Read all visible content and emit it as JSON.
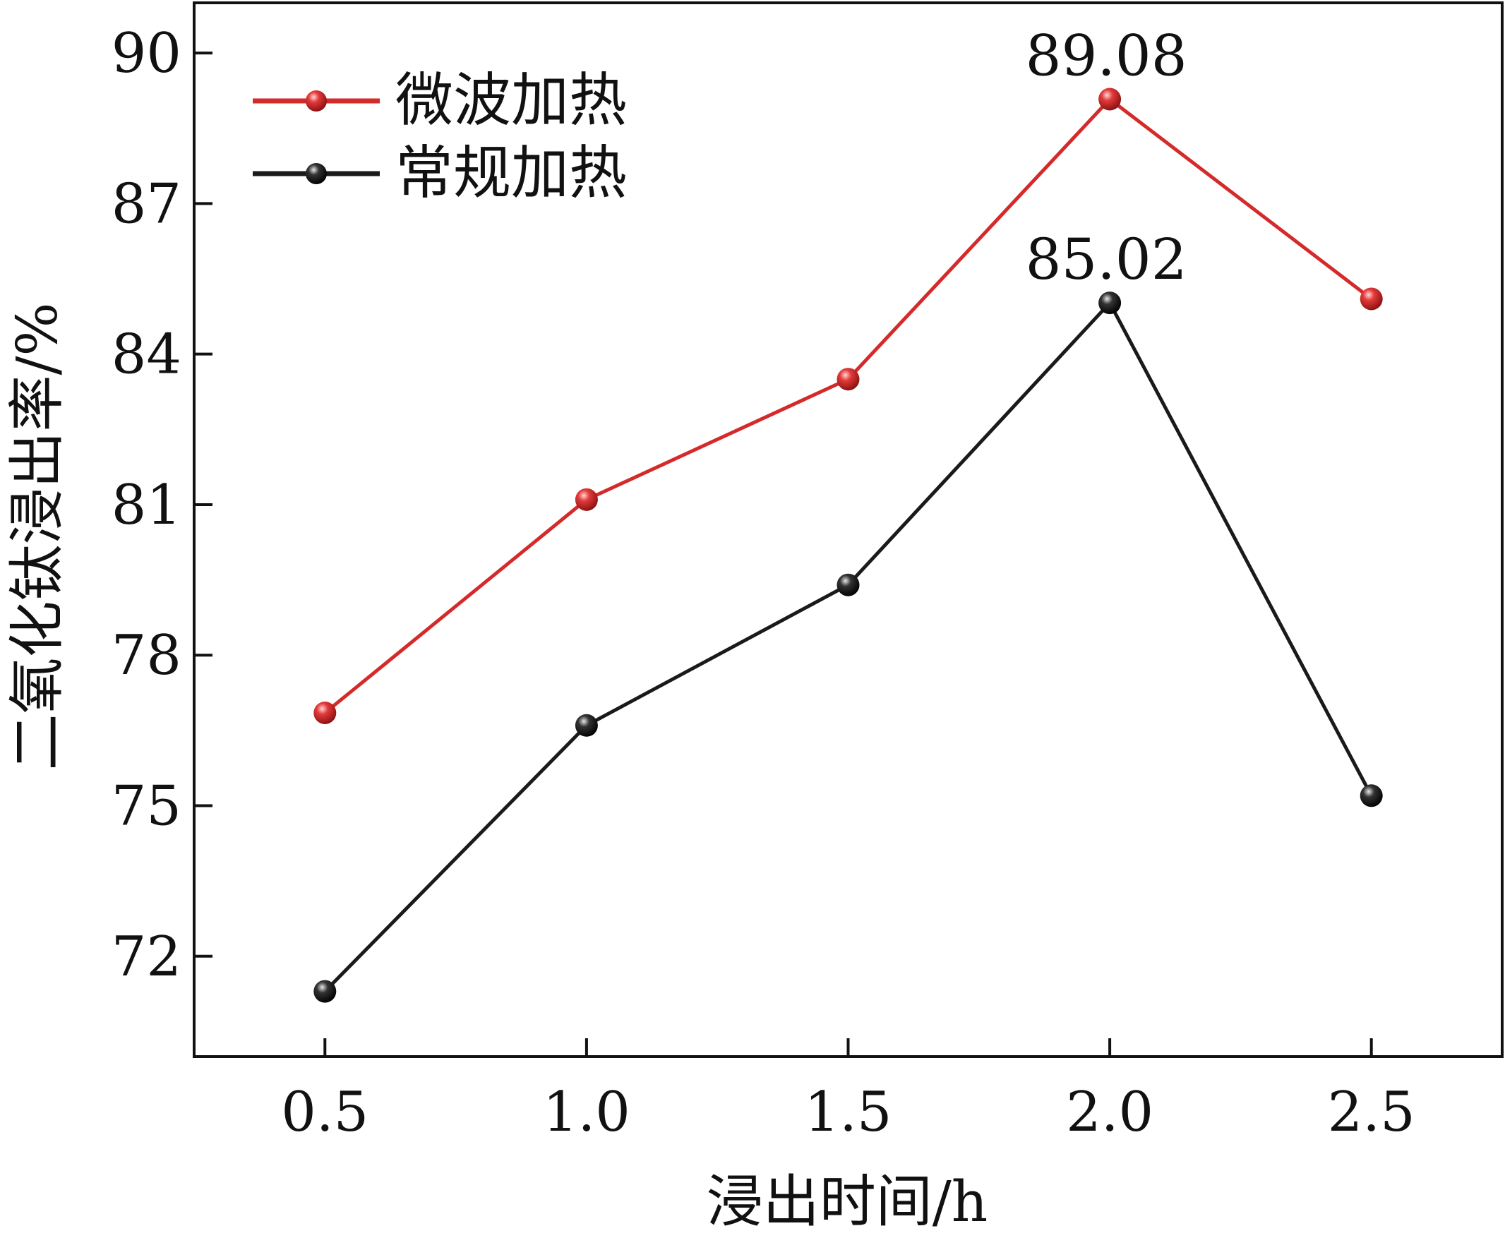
{
  "chart_data": {
    "type": "line",
    "title": "",
    "xlabel": "浸出时间/h",
    "ylabel": "二氧化钛浸出率/%",
    "x": [
      0.5,
      1.0,
      1.5,
      2.0,
      2.5
    ],
    "x_tick_labels": [
      "0.5",
      "1.0",
      "1.5",
      "2.0",
      "2.5"
    ],
    "xlim": [
      0.25,
      2.75
    ],
    "ylim": [
      70,
      91
    ],
    "y_ticks": [
      72,
      75,
      78,
      81,
      84,
      87,
      90
    ],
    "y_tick_labels": [
      "72",
      "75",
      "78",
      "81",
      "84",
      "87",
      "90"
    ],
    "grid": false,
    "legend_position": "top-left",
    "series": [
      {
        "name": "微波加热",
        "color": "#d42a2a",
        "values": [
          76.85,
          81.1,
          83.5,
          89.08,
          85.1
        ]
      },
      {
        "name": "常规加热",
        "color": "#1a1a1a",
        "values": [
          71.3,
          76.6,
          79.4,
          85.02,
          75.2
        ]
      }
    ],
    "annotations": [
      {
        "series": 0,
        "point": 3,
        "text": "89.08"
      },
      {
        "series": 1,
        "point": 3,
        "text": "85.02"
      }
    ]
  }
}
